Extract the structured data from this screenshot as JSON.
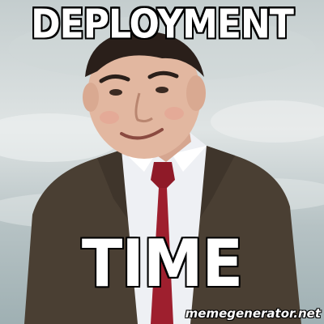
{
  "meme": {
    "top_text": "DEPLOYMENT",
    "bottom_text": "TIME",
    "watermark": "memegenerator.net"
  },
  "colors": {
    "caption_fill": "#ffffff",
    "caption_stroke": "#000000",
    "background": "#cfd6d6",
    "suit": "#4a3f33",
    "shirt": "#eef0f4",
    "tie": "#9e1f2e",
    "skin": "#e2b7a0",
    "hair": "#2a1f1a"
  }
}
